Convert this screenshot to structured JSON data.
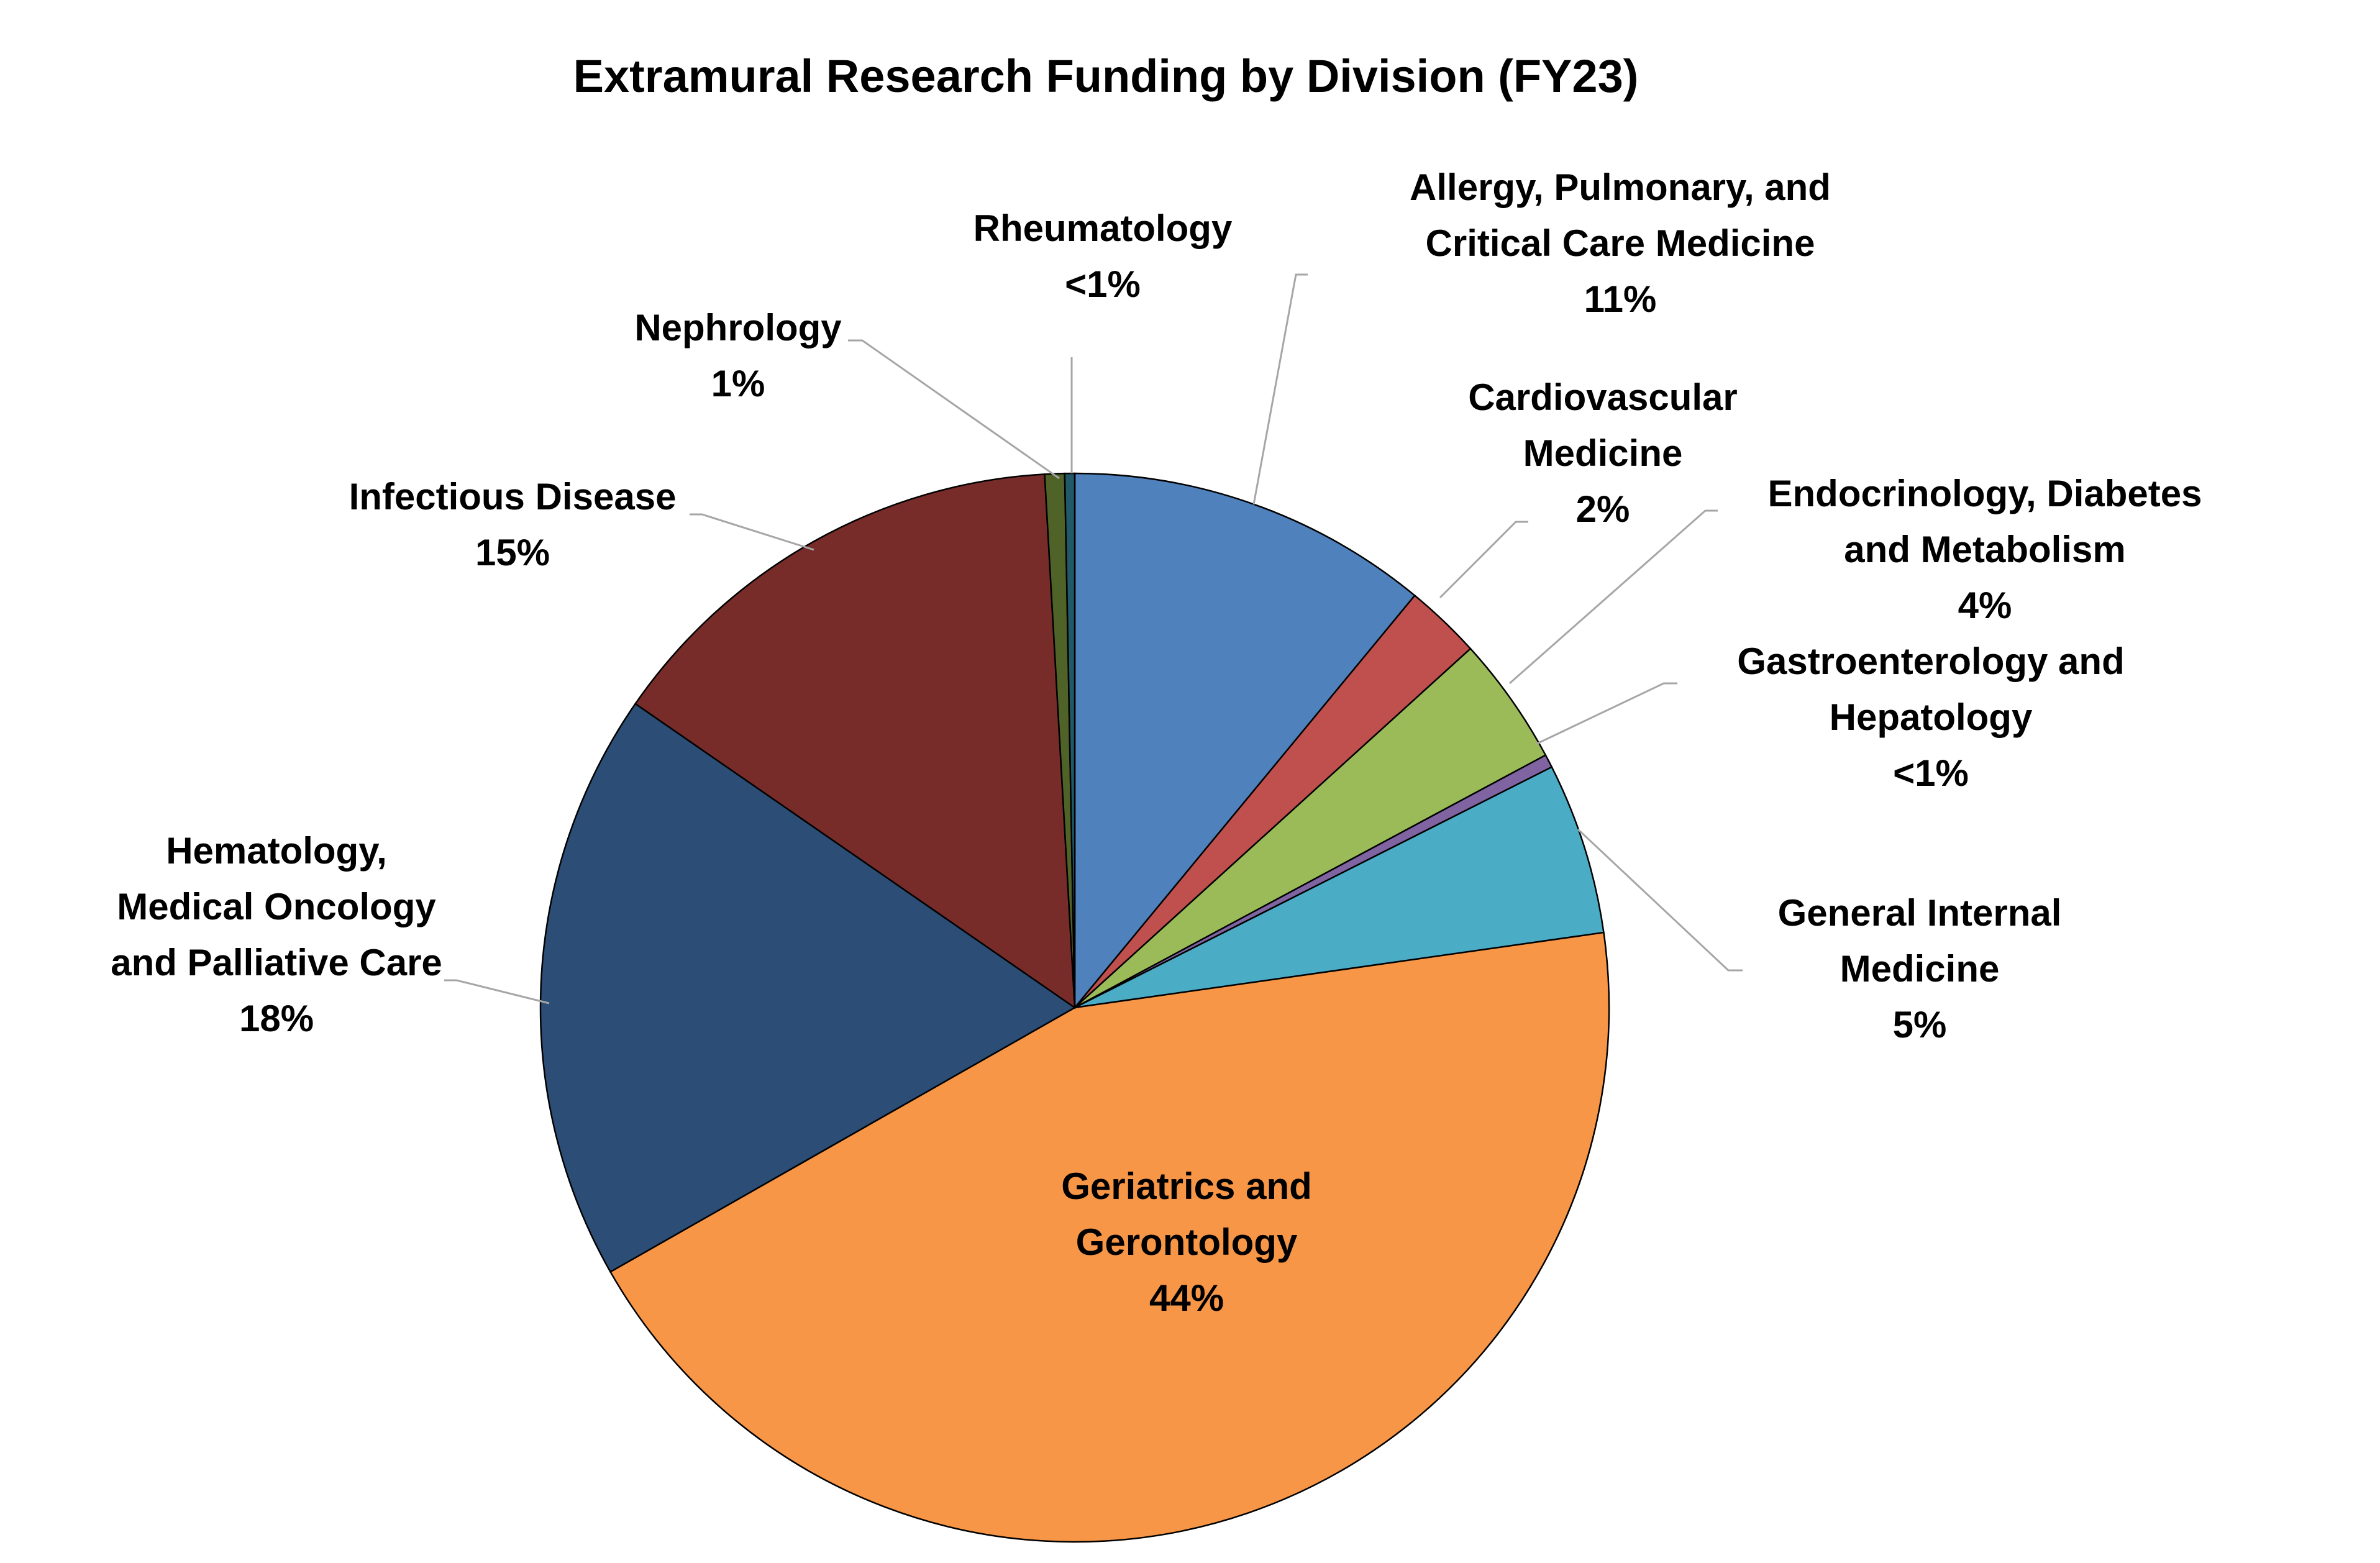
{
  "chart_data": {
    "type": "pie",
    "title": "Extramural Research Funding by Division (FY23)",
    "start_angle_deg": 0,
    "direction": "clockwise",
    "slices": [
      {
        "label": "Allergy, Pulmonary, and Critical Care Medicine",
        "value_text": "11%",
        "value": 11.0,
        "color": "#4f81bd"
      },
      {
        "label": "Cardiovascular Medicine",
        "value_text": "2%",
        "value": 2.3,
        "color": "#c0504d"
      },
      {
        "label": "Endocrinology, Diabetes and Metabolism",
        "value_text": "4%",
        "value": 3.9,
        "color": "#9bbb59"
      },
      {
        "label": "Gastroenterology and Hepatology",
        "value_text": "<1%",
        "value": 0.4,
        "color": "#8064a2"
      },
      {
        "label": "General Internal Medicine",
        "value_text": "5%",
        "value": 5.2,
        "color": "#4bacc6"
      },
      {
        "label": "Geriatrics and Gerontology",
        "value_text": "44%",
        "value": 44.1,
        "color": "#f79646"
      },
      {
        "label": "Hematology, Medical Oncology and Palliative Care",
        "value_text": "18%",
        "value": 17.9,
        "color": "#2c4d75"
      },
      {
        "label": "Infectious Disease",
        "value_text": "15%",
        "value": 14.5,
        "color": "#772c2a"
      },
      {
        "label": "Nephrology",
        "value_text": "1%",
        "value": 0.6,
        "color": "#4f6228"
      },
      {
        "label": "Rheumatology",
        "value_text": "<1%",
        "value": 0.3,
        "color": "#215968"
      }
    ],
    "label_lines": [
      [
        "Allergy, Pulmonary, and",
        "Critical Care Medicine",
        "11%"
      ],
      [
        "Cardiovascular",
        "Medicine",
        "2%"
      ],
      [
        "Endocrinology, Diabetes",
        "and Metabolism",
        "4%"
      ],
      [
        "Gastroenterology and",
        "Hepatology",
        "<1%"
      ],
      [
        "General Internal",
        "Medicine",
        "5%"
      ],
      [
        "Geriatrics and",
        "Gerontology",
        "44%"
      ],
      [
        "Hematology,",
        "Medical Oncology",
        "and Palliative Care",
        "18%"
      ],
      [
        "Infectious Disease",
        "15%"
      ],
      [
        "Nephrology",
        "1%"
      ],
      [
        "Rheumatology",
        "<1%"
      ]
    ]
  }
}
